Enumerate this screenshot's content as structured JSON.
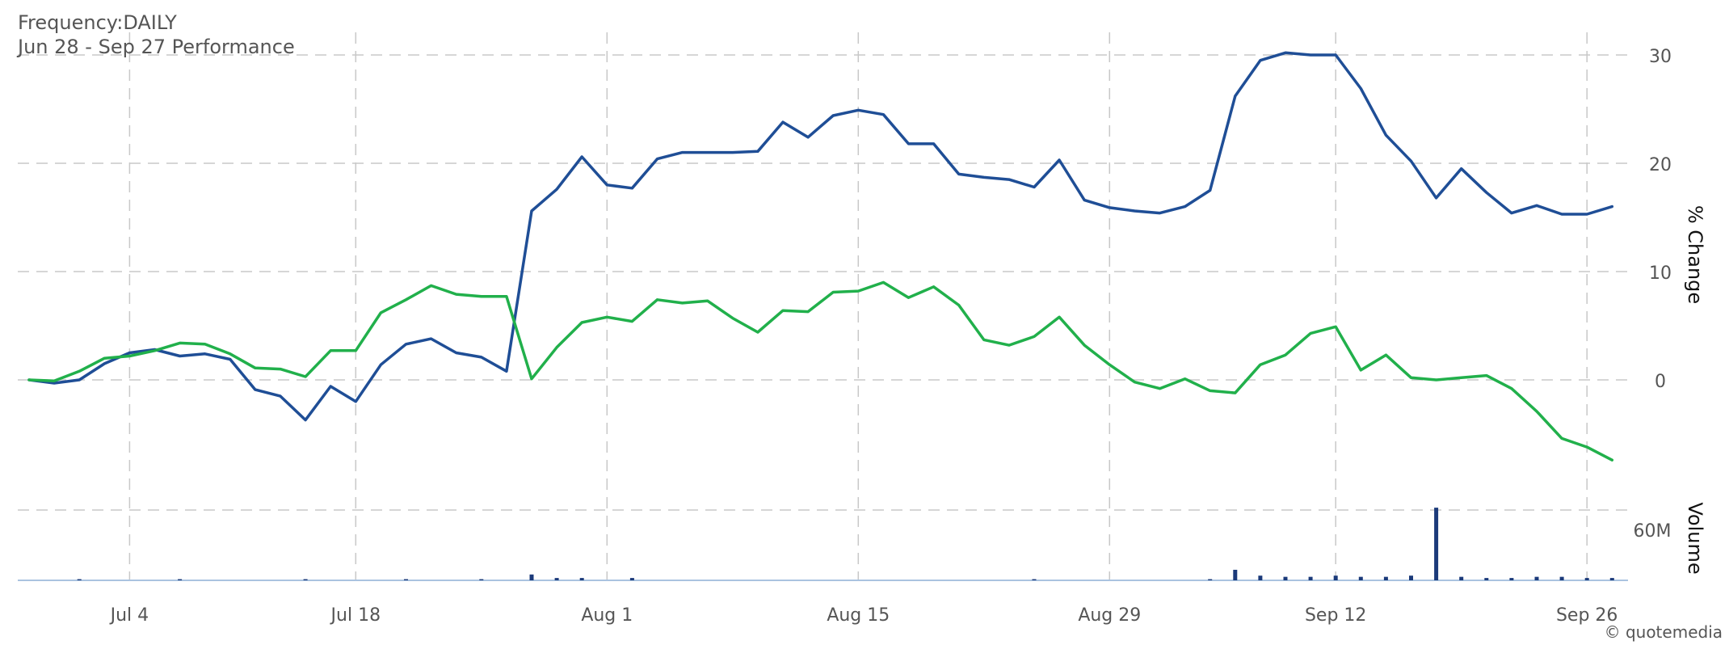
{
  "header": {
    "frequency": "Frequency:DAILY",
    "performance": "Jun 28 - Sep 27 Performance"
  },
  "footer": {
    "credit": "© quotemedia"
  },
  "colors": {
    "primary_line": "#1f4e96",
    "secondary_line": "#21b04b",
    "volume_bar": "#1b3a7a",
    "grid": "#c8c8c8",
    "axis": "#aac3e0",
    "text": "#555555"
  },
  "chart_data": [
    {
      "type": "line",
      "title": "Jun 28 - Sep 27 Performance",
      "ylabel": "% Change",
      "y_ticks": [
        0,
        10,
        20,
        30
      ],
      "ylim": [
        -11,
        35
      ],
      "x_ticks": [
        {
          "index": 4,
          "label": "Jul 4"
        },
        {
          "index": 13,
          "label": "Jul 18"
        },
        {
          "index": 23,
          "label": "Aug 1"
        },
        {
          "index": 33,
          "label": "Aug 15"
        },
        {
          "index": 43,
          "label": "Aug 29"
        },
        {
          "index": 52,
          "label": "Sep 12"
        },
        {
          "index": 62,
          "label": "Sep 26"
        }
      ],
      "x_count": 64,
      "grid": true,
      "series": [
        {
          "color": "#1f4e96",
          "values": [
            0,
            -0.3,
            0,
            1.5,
            2.5,
            2.8,
            2.2,
            2.4,
            1.9,
            -0.9,
            -1.5,
            -3.7,
            -0.6,
            -2,
            1.4,
            3.3,
            3.8,
            2.5,
            2.1,
            0.8,
            15.6,
            17.6,
            20.6,
            18,
            17.7,
            20.4,
            21,
            21,
            21,
            21.1,
            23.8,
            22.4,
            24.4,
            24.9,
            24.5,
            21.8,
            21.8,
            19,
            18.7,
            18.5,
            17.8,
            20.3,
            16.6,
            15.9,
            15.6,
            15.4,
            16,
            17.5,
            26.2,
            29.5,
            30.2,
            30,
            30,
            26.9,
            22.6,
            20.2,
            16.8,
            19.5,
            17.3,
            15.4,
            16.1,
            15.3,
            15.3,
            16
          ]
        },
        {
          "color": "#21b04b",
          "values": [
            0,
            -0.1,
            0.8,
            2,
            2.2,
            2.7,
            3.4,
            3.3,
            2.4,
            1.1,
            1,
            0.3,
            2.7,
            2.7,
            6.2,
            7.4,
            8.7,
            7.9,
            7.7,
            7.7,
            0.1,
            3,
            5.3,
            5.8,
            5.4,
            7.4,
            7.1,
            7.3,
            5.7,
            4.4,
            6.4,
            6.3,
            8.1,
            8.2,
            9,
            7.6,
            8.6,
            6.9,
            3.7,
            3.2,
            4,
            5.8,
            3.2,
            1.4,
            -0.2,
            -0.8,
            0.1,
            -1,
            -1.2,
            1.4,
            2.3,
            4.3,
            4.9,
            0.9,
            2.3,
            0.2,
            0,
            0.2,
            0.4,
            -0.8,
            -2.9,
            -5.4,
            -6.2,
            -7.4
          ]
        }
      ]
    },
    {
      "type": "bar",
      "ylabel": "Volume",
      "y_ticks": [
        "60M"
      ],
      "ylim": [
        0,
        66
      ],
      "unit": "M",
      "values": [
        0,
        0,
        1,
        0,
        0,
        0,
        1,
        0,
        0,
        0,
        0,
        1,
        0,
        0,
        0,
        1,
        0,
        0,
        1,
        0,
        5,
        2,
        2,
        0,
        2,
        0,
        0,
        0,
        0,
        0,
        0,
        0,
        0,
        0,
        0,
        0,
        0,
        0,
        0,
        0,
        1,
        0,
        0,
        0,
        0,
        0,
        0,
        1,
        9,
        4,
        3,
        3,
        4,
        3,
        3,
        4,
        62,
        3,
        2,
        2,
        3,
        3,
        2,
        2
      ]
    }
  ]
}
